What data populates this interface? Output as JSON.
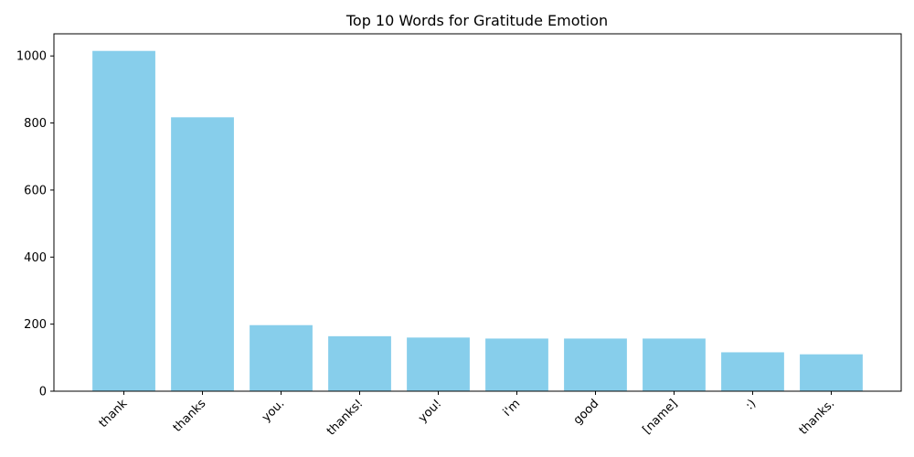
{
  "chart_data": {
    "type": "bar",
    "title": "Top 10 Words for Gratitude Emotion",
    "xlabel": "",
    "ylabel": "",
    "categories": [
      "thank",
      "thanks",
      "you.",
      "thanks!",
      "you!",
      "i'm",
      "good",
      "[name]",
      ":)",
      "thanks."
    ],
    "values": [
      1015,
      817,
      197,
      164,
      160,
      157,
      157,
      157,
      116,
      110
    ],
    "ylim": [
      0,
      1066
    ],
    "yticks": [
      0,
      200,
      400,
      600,
      800,
      1000
    ],
    "bar_color": "#87CEEB",
    "grid": false,
    "legend": "none"
  }
}
